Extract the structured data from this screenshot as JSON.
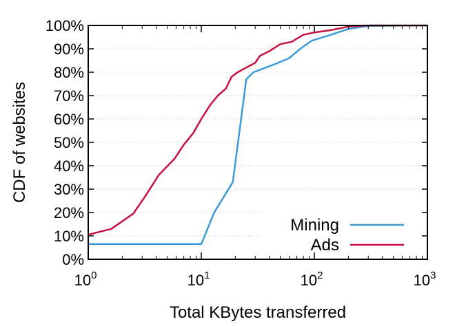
{
  "chart_data": {
    "type": "line",
    "title": "",
    "xlabel": "Total KBytes transferred",
    "ylabel": "CDF of websites",
    "x_scale": "log10",
    "xlim": [
      1,
      1000
    ],
    "ylim": [
      0,
      100
    ],
    "x_ticks": [
      {
        "base": "10",
        "exp": "0",
        "value": 1
      },
      {
        "base": "10",
        "exp": "1",
        "value": 10
      },
      {
        "base": "10",
        "exp": "2",
        "value": 100
      },
      {
        "base": "10",
        "exp": "3",
        "value": 1000
      }
    ],
    "y_ticks": [
      {
        "label": "0%",
        "value": 0
      },
      {
        "label": "10%",
        "value": 10
      },
      {
        "label": "20%",
        "value": 20
      },
      {
        "label": "30%",
        "value": 30
      },
      {
        "label": "40%",
        "value": 40
      },
      {
        "label": "50%",
        "value": 50
      },
      {
        "label": "60%",
        "value": 60
      },
      {
        "label": "70%",
        "value": 70
      },
      {
        "label": "80%",
        "value": 80
      },
      {
        "label": "90%",
        "value": 90
      },
      {
        "label": "100%",
        "value": 100
      }
    ],
    "grid": "horizontal dotted",
    "legend_position": "bottom-right",
    "series": [
      {
        "name": "Mining",
        "color": "#3a9ad9",
        "points": [
          [
            1,
            6.5
          ],
          [
            10,
            6.5
          ],
          [
            13,
            20
          ],
          [
            19,
            33
          ],
          [
            25,
            77
          ],
          [
            29,
            80
          ],
          [
            45,
            83.5
          ],
          [
            60,
            86
          ],
          [
            75,
            90
          ],
          [
            95,
            93.5
          ],
          [
            140,
            96
          ],
          [
            200,
            98.5
          ],
          [
            300,
            99.8
          ],
          [
            1000,
            100
          ]
        ]
      },
      {
        "name": "Ads",
        "color": "#c8103e",
        "points": [
          [
            1,
            10.5
          ],
          [
            1.2,
            11.5
          ],
          [
            1.6,
            13
          ],
          [
            2.5,
            19.5
          ],
          [
            3.2,
            27
          ],
          [
            4.2,
            36
          ],
          [
            5.8,
            43
          ],
          [
            7,
            49
          ],
          [
            8.5,
            54
          ],
          [
            10,
            60
          ],
          [
            12,
            66
          ],
          [
            14,
            70
          ],
          [
            16.5,
            73
          ],
          [
            18.5,
            78
          ],
          [
            21,
            80
          ],
          [
            25,
            82
          ],
          [
            30,
            84
          ],
          [
            33,
            87
          ],
          [
            40,
            89
          ],
          [
            50,
            92
          ],
          [
            63,
            93
          ],
          [
            80,
            96
          ],
          [
            100,
            97
          ],
          [
            140,
            98
          ],
          [
            200,
            99.5
          ],
          [
            300,
            100
          ],
          [
            1000,
            100
          ]
        ]
      }
    ]
  }
}
